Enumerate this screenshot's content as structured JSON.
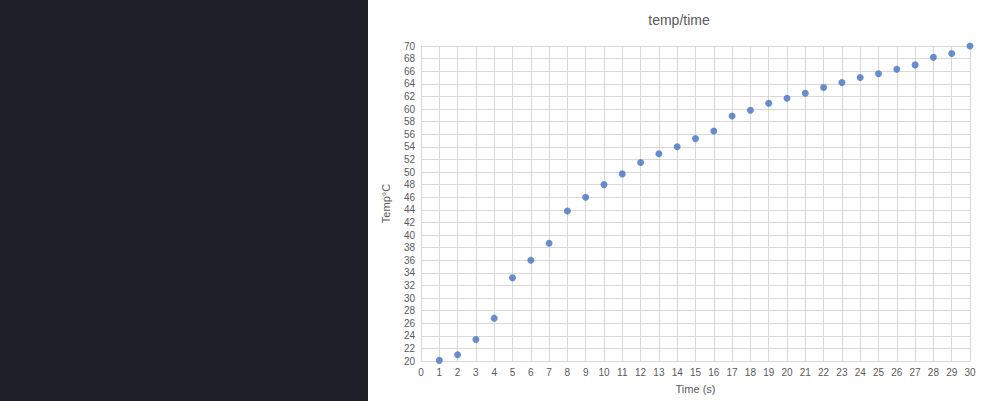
{
  "chart_data": {
    "type": "scatter",
    "title": "temp/time",
    "x_label": "Time (s)",
    "y_label": "Temp°C",
    "x": [
      1,
      2,
      3,
      4,
      5,
      6,
      7,
      8,
      9,
      10,
      11,
      12,
      13,
      14,
      15,
      16,
      17,
      18,
      19,
      20,
      21,
      22,
      23,
      24,
      25,
      26,
      27,
      28,
      29,
      30
    ],
    "values": [
      20.1,
      21,
      23.4,
      26.8,
      33.2,
      36,
      38.7,
      43.8,
      46,
      48,
      49.7,
      51.5,
      52.9,
      54,
      55.3,
      56.5,
      58.9,
      59.8,
      60.9,
      61.7,
      62.5,
      63.4,
      64.2,
      65,
      65.6,
      66.3,
      67,
      68.2,
      68.8,
      70
    ],
    "color": "#4472c4",
    "marker": "circle",
    "xlim": [
      0,
      30
    ],
    "xticks": [
      0,
      1,
      2,
      3,
      4,
      5,
      6,
      7,
      8,
      9,
      10,
      11,
      12,
      13,
      14,
      15,
      16,
      17,
      18,
      19,
      20,
      21,
      22,
      23,
      24,
      25,
      26,
      27,
      28,
      29,
      30
    ],
    "ylim": [
      20,
      70
    ],
    "yticks": [
      20,
      22,
      24,
      26,
      28,
      30,
      32,
      34,
      36,
      38,
      40,
      42,
      44,
      46,
      48,
      50,
      52,
      54,
      56,
      58,
      60,
      62,
      64,
      66,
      68,
      70
    ],
    "grid": true
  }
}
